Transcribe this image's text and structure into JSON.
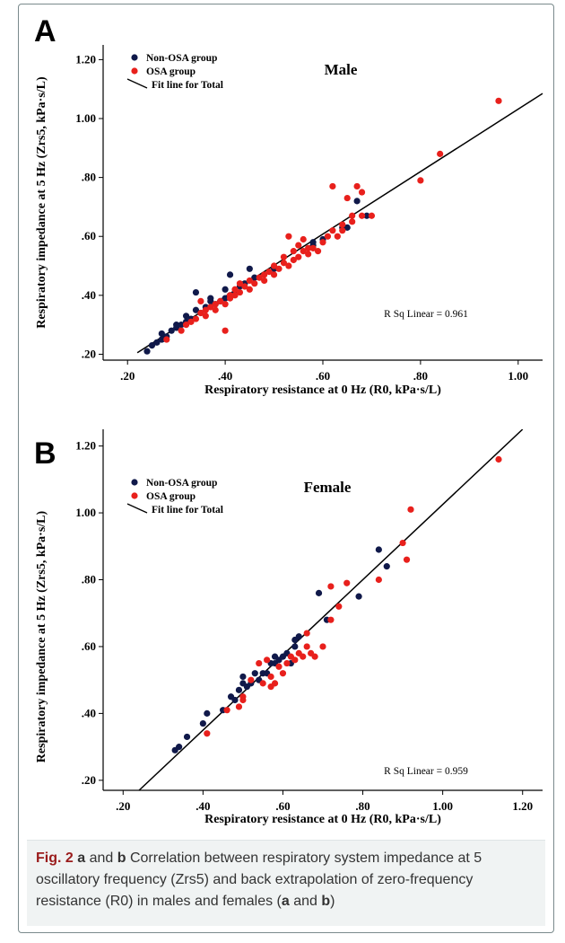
{
  "figure": {
    "caption": {
      "label": "Fig. 2",
      "parts": [
        {
          "text": "a",
          "bold": true
        },
        {
          "text": " and ",
          "bold": false
        },
        {
          "text": "b",
          "bold": true
        },
        {
          "text": " Correlation between respiratory system impedance at 5 oscillatory frequency (Zrs5) and back extrapolation of zero-frequency resistance (R0) in males and females (",
          "bold": false
        },
        {
          "text": "a",
          "bold": true
        },
        {
          "text": " and ",
          "bold": false
        },
        {
          "text": "b",
          "bold": true
        },
        {
          "text": ")",
          "bold": false
        }
      ]
    }
  },
  "colors": {
    "non_osa": "#10194a",
    "osa": "#e8201c",
    "fit": "#000000"
  },
  "chart_data": [
    {
      "panel_letter": "A",
      "type": "scatter",
      "title": "Male",
      "xlabel": "Respiratory resistance at 0 Hz (R0, kPa·s/L)",
      "ylabel": "Respiratory impedance at 5 Hz (Zrs5, kPa·s/L)",
      "xlim": [
        0.15,
        1.05
      ],
      "ylim": [
        0.18,
        1.25
      ],
      "x_ticks": [
        0.2,
        0.4,
        0.6,
        0.8,
        1.0
      ],
      "x_tick_labels": [
        ".20",
        ".40",
        ".60",
        ".80",
        "1.00"
      ],
      "y_ticks": [
        0.2,
        0.4,
        0.6,
        0.8,
        1.0,
        1.2
      ],
      "y_tick_labels": [
        ".20",
        ".40",
        ".60",
        ".80",
        "1.00",
        "1.20"
      ],
      "legend": {
        "placement": "top-left",
        "entries": [
          {
            "label": "Non-OSA group",
            "marker": "dot",
            "color": "#10194a"
          },
          {
            "label": "OSA group",
            "marker": "dot",
            "color": "#e8201c"
          },
          {
            "label": "Fit line for Total",
            "marker": "line",
            "color": "#000000"
          }
        ]
      },
      "annotation": "R Sq Linear = 0.961",
      "fit_line": {
        "x": [
          0.22,
          1.05
        ],
        "y": [
          0.205,
          1.085
        ]
      },
      "series": [
        {
          "name": "Non-OSA group",
          "points": [
            [
              0.24,
              0.21
            ],
            [
              0.25,
              0.23
            ],
            [
              0.26,
              0.24
            ],
            [
              0.27,
              0.25
            ],
            [
              0.27,
              0.27
            ],
            [
              0.28,
              0.26
            ],
            [
              0.29,
              0.28
            ],
            [
              0.3,
              0.29
            ],
            [
              0.3,
              0.3
            ],
            [
              0.31,
              0.3
            ],
            [
              0.32,
              0.31
            ],
            [
              0.32,
              0.33
            ],
            [
              0.33,
              0.32
            ],
            [
              0.34,
              0.35
            ],
            [
              0.34,
              0.41
            ],
            [
              0.35,
              0.34
            ],
            [
              0.36,
              0.36
            ],
            [
              0.37,
              0.38
            ],
            [
              0.37,
              0.39
            ],
            [
              0.38,
              0.37
            ],
            [
              0.39,
              0.38
            ],
            [
              0.4,
              0.42
            ],
            [
              0.4,
              0.39
            ],
            [
              0.41,
              0.4
            ],
            [
              0.41,
              0.47
            ],
            [
              0.42,
              0.41
            ],
            [
              0.43,
              0.43
            ],
            [
              0.44,
              0.44
            ],
            [
              0.45,
              0.49
            ],
            [
              0.46,
              0.46
            ],
            [
              0.5,
              0.49
            ],
            [
              0.58,
              0.57
            ],
            [
              0.58,
              0.58
            ],
            [
              0.6,
              0.59
            ],
            [
              0.64,
              0.63
            ],
            [
              0.65,
              0.63
            ],
            [
              0.67,
              0.72
            ],
            [
              0.69,
              0.67
            ]
          ]
        },
        {
          "name": "OSA group",
          "points": [
            [
              0.28,
              0.25
            ],
            [
              0.31,
              0.28
            ],
            [
              0.32,
              0.3
            ],
            [
              0.33,
              0.31
            ],
            [
              0.34,
              0.32
            ],
            [
              0.35,
              0.34
            ],
            [
              0.35,
              0.38
            ],
            [
              0.36,
              0.33
            ],
            [
              0.36,
              0.35
            ],
            [
              0.37,
              0.36
            ],
            [
              0.38,
              0.35
            ],
            [
              0.38,
              0.37
            ],
            [
              0.39,
              0.38
            ],
            [
              0.4,
              0.28
            ],
            [
              0.4,
              0.37
            ],
            [
              0.41,
              0.39
            ],
            [
              0.41,
              0.4
            ],
            [
              0.42,
              0.4
            ],
            [
              0.42,
              0.42
            ],
            [
              0.43,
              0.41
            ],
            [
              0.43,
              0.44
            ],
            [
              0.44,
              0.43
            ],
            [
              0.45,
              0.42
            ],
            [
              0.45,
              0.45
            ],
            [
              0.46,
              0.44
            ],
            [
              0.47,
              0.46
            ],
            [
              0.48,
              0.45
            ],
            [
              0.48,
              0.47
            ],
            [
              0.49,
              0.48
            ],
            [
              0.5,
              0.47
            ],
            [
              0.5,
              0.5
            ],
            [
              0.51,
              0.49
            ],
            [
              0.52,
              0.51
            ],
            [
              0.52,
              0.53
            ],
            [
              0.53,
              0.5
            ],
            [
              0.53,
              0.6
            ],
            [
              0.54,
              0.52
            ],
            [
              0.54,
              0.55
            ],
            [
              0.55,
              0.53
            ],
            [
              0.55,
              0.57
            ],
            [
              0.56,
              0.55
            ],
            [
              0.56,
              0.59
            ],
            [
              0.57,
              0.54
            ],
            [
              0.57,
              0.56
            ],
            [
              0.58,
              0.56
            ],
            [
              0.59,
              0.55
            ],
            [
              0.6,
              0.58
            ],
            [
              0.61,
              0.6
            ],
            [
              0.62,
              0.62
            ],
            [
              0.62,
              0.77
            ],
            [
              0.63,
              0.6
            ],
            [
              0.64,
              0.64
            ],
            [
              0.64,
              0.62
            ],
            [
              0.65,
              0.73
            ],
            [
              0.66,
              0.65
            ],
            [
              0.66,
              0.67
            ],
            [
              0.67,
              0.77
            ],
            [
              0.68,
              0.75
            ],
            [
              0.68,
              0.67
            ],
            [
              0.7,
              0.67
            ],
            [
              0.8,
              0.79
            ],
            [
              0.84,
              0.88
            ],
            [
              0.96,
              1.06
            ]
          ]
        }
      ]
    },
    {
      "panel_letter": "B",
      "type": "scatter",
      "title": "Female",
      "xlabel": "Respiratory resistance at 0 Hz (R0, kPa·s/L)",
      "ylabel": "Respiratory impedance at 5 Hz (Zrs5, kPa·s/L)",
      "xlim": [
        0.15,
        1.25
      ],
      "ylim": [
        0.17,
        1.25
      ],
      "x_ticks": [
        0.2,
        0.4,
        0.6,
        0.8,
        1.0,
        1.2
      ],
      "x_tick_labels": [
        ".20",
        ".40",
        ".60",
        ".80",
        "1.00",
        "1.20"
      ],
      "y_ticks": [
        0.2,
        0.4,
        0.6,
        0.8,
        1.0,
        1.2
      ],
      "y_tick_labels": [
        ".20",
        ".40",
        ".60",
        ".80",
        "1.00",
        "1.20"
      ],
      "legend": {
        "placement": "top-left",
        "entries": [
          {
            "label": "Non-OSA group",
            "marker": "dot",
            "color": "#10194a"
          },
          {
            "label": "OSA group",
            "marker": "dot",
            "color": "#e8201c"
          },
          {
            "label": "Fit line for Total",
            "marker": "line",
            "color": "#000000"
          }
        ]
      },
      "annotation": "R Sq Linear = 0.959",
      "fit_line": {
        "x": [
          0.24,
          1.2
        ],
        "y": [
          0.17,
          1.25
        ]
      },
      "series": [
        {
          "name": "Non-OSA group",
          "points": [
            [
              0.33,
              0.29
            ],
            [
              0.34,
              0.3
            ],
            [
              0.36,
              0.33
            ],
            [
              0.4,
              0.37
            ],
            [
              0.41,
              0.4
            ],
            [
              0.45,
              0.41
            ],
            [
              0.47,
              0.45
            ],
            [
              0.48,
              0.44
            ],
            [
              0.49,
              0.47
            ],
            [
              0.5,
              0.49
            ],
            [
              0.5,
              0.51
            ],
            [
              0.51,
              0.48
            ],
            [
              0.52,
              0.49
            ],
            [
              0.53,
              0.52
            ],
            [
              0.54,
              0.5
            ],
            [
              0.55,
              0.52
            ],
            [
              0.56,
              0.52
            ],
            [
              0.57,
              0.55
            ],
            [
              0.58,
              0.55
            ],
            [
              0.58,
              0.57
            ],
            [
              0.59,
              0.56
            ],
            [
              0.6,
              0.57
            ],
            [
              0.61,
              0.58
            ],
            [
              0.62,
              0.55
            ],
            [
              0.63,
              0.6
            ],
            [
              0.63,
              0.62
            ],
            [
              0.64,
              0.63
            ],
            [
              0.69,
              0.76
            ],
            [
              0.71,
              0.68
            ],
            [
              0.79,
              0.75
            ],
            [
              0.84,
              0.89
            ],
            [
              0.86,
              0.84
            ]
          ]
        },
        {
          "name": "OSA group",
          "points": [
            [
              0.41,
              0.34
            ],
            [
              0.46,
              0.41
            ],
            [
              0.49,
              0.42
            ],
            [
              0.5,
              0.44
            ],
            [
              0.5,
              0.45
            ],
            [
              0.52,
              0.5
            ],
            [
              0.54,
              0.55
            ],
            [
              0.55,
              0.49
            ],
            [
              0.56,
              0.56
            ],
            [
              0.57,
              0.51
            ],
            [
              0.57,
              0.48
            ],
            [
              0.58,
              0.49
            ],
            [
              0.59,
              0.54
            ],
            [
              0.6,
              0.52
            ],
            [
              0.61,
              0.55
            ],
            [
              0.62,
              0.57
            ],
            [
              0.63,
              0.56
            ],
            [
              0.64,
              0.58
            ],
            [
              0.65,
              0.57
            ],
            [
              0.66,
              0.6
            ],
            [
              0.66,
              0.64
            ],
            [
              0.67,
              0.58
            ],
            [
              0.68,
              0.57
            ],
            [
              0.7,
              0.6
            ],
            [
              0.72,
              0.68
            ],
            [
              0.72,
              0.78
            ],
            [
              0.74,
              0.72
            ],
            [
              0.76,
              0.79
            ],
            [
              0.84,
              0.8
            ],
            [
              0.9,
              0.91
            ],
            [
              0.91,
              0.86
            ],
            [
              0.92,
              1.01
            ],
            [
              1.14,
              1.16
            ]
          ]
        }
      ]
    }
  ]
}
